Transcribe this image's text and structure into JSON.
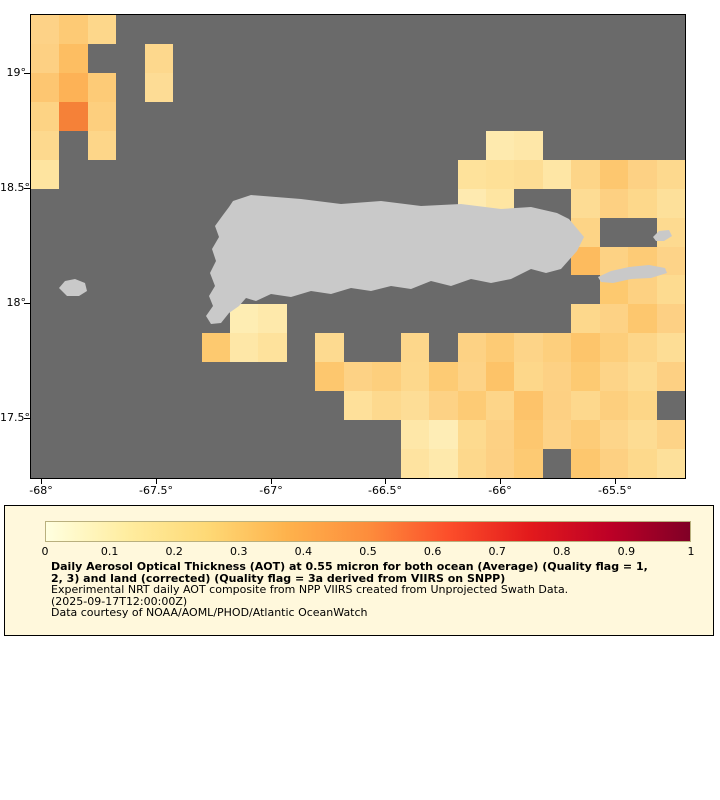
{
  "figure": {
    "map": {
      "background": "#6a6a6a",
      "land_color": "#c9c9c9",
      "lat_ticks": [
        "19°",
        "18.5°",
        "18°",
        "17.5°"
      ],
      "lon_ticks": [
        "-68°",
        "-67.5°",
        "-67°",
        "-66.5°",
        "-66°",
        "-65.5°"
      ],
      "grid": {
        "rows": 16,
        "cols": 23,
        "cells": [
          [
            0,
            0,
            "#fdd287"
          ],
          [
            0,
            1,
            "#fdca75"
          ],
          [
            0,
            2,
            "#fdd78b"
          ],
          [
            1,
            0,
            "#fdd083"
          ],
          [
            1,
            1,
            "#fdbe62"
          ],
          [
            1,
            4,
            "#fdd88d"
          ],
          [
            2,
            0,
            "#fdc671"
          ],
          [
            2,
            1,
            "#fdb256"
          ],
          [
            2,
            2,
            "#fdcb77"
          ],
          [
            2,
            4,
            "#fddc95"
          ],
          [
            3,
            0,
            "#fdd384"
          ],
          [
            3,
            1,
            "#f58138"
          ],
          [
            3,
            2,
            "#fdcf7e"
          ],
          [
            4,
            0,
            "#fdd98e"
          ],
          [
            4,
            2,
            "#fdd689"
          ],
          [
            4,
            16,
            "#feeaae"
          ],
          [
            4,
            17,
            "#fee7a8"
          ],
          [
            5,
            0,
            "#fee4a0"
          ],
          [
            5,
            15,
            "#fee29b"
          ],
          [
            5,
            16,
            "#fee097"
          ],
          [
            5,
            17,
            "#fddd94"
          ],
          [
            5,
            18,
            "#fee6a5"
          ],
          [
            5,
            19,
            "#fdd588"
          ],
          [
            5,
            20,
            "#fdc76f"
          ],
          [
            5,
            21,
            "#fdd184"
          ],
          [
            5,
            22,
            "#fdd98e"
          ],
          [
            6,
            15,
            "#feeab0"
          ],
          [
            6,
            16,
            "#fee5a2"
          ],
          [
            6,
            19,
            "#fddc94"
          ],
          [
            6,
            20,
            "#fdd082"
          ],
          [
            6,
            21,
            "#fdd88b"
          ],
          [
            6,
            22,
            "#fde09a"
          ],
          [
            7,
            19,
            "#fdd486"
          ],
          [
            7,
            22,
            "#fdda90"
          ],
          [
            8,
            19,
            "#fdbb5e"
          ],
          [
            8,
            20,
            "#fdd284"
          ],
          [
            8,
            21,
            "#fdcb76"
          ],
          [
            8,
            22,
            "#fdd388"
          ],
          [
            9,
            20,
            "#fdc96f"
          ],
          [
            9,
            21,
            "#fdd182"
          ],
          [
            9,
            22,
            "#fddb90"
          ],
          [
            10,
            7,
            "#feedb3"
          ],
          [
            10,
            8,
            "#fee9ab"
          ],
          [
            10,
            19,
            "#fdd88c"
          ],
          [
            10,
            20,
            "#fdd285"
          ],
          [
            10,
            21,
            "#fdc76e"
          ],
          [
            10,
            22,
            "#fdd084"
          ],
          [
            11,
            6,
            "#fdc96f"
          ],
          [
            11,
            7,
            "#fee7a7"
          ],
          [
            11,
            8,
            "#fee29c"
          ],
          [
            11,
            10,
            "#fdda90"
          ],
          [
            11,
            13,
            "#fdd78b"
          ],
          [
            11,
            15,
            "#fdd284"
          ],
          [
            11,
            16,
            "#fdcb75"
          ],
          [
            11,
            17,
            "#fdd488"
          ],
          [
            11,
            18,
            "#fdcf7d"
          ],
          [
            11,
            19,
            "#fdc56b"
          ],
          [
            11,
            20,
            "#fdce7b"
          ],
          [
            11,
            21,
            "#fdd689"
          ],
          [
            11,
            22,
            "#fddd95"
          ],
          [
            12,
            10,
            "#fdc76e"
          ],
          [
            12,
            11,
            "#fdd285"
          ],
          [
            12,
            12,
            "#fdcf7d"
          ],
          [
            12,
            13,
            "#fdd88c"
          ],
          [
            12,
            14,
            "#fdcb74"
          ],
          [
            12,
            15,
            "#fdd387"
          ],
          [
            12,
            16,
            "#fdc368"
          ],
          [
            12,
            17,
            "#fdd78a"
          ],
          [
            12,
            18,
            "#fdd184"
          ],
          [
            12,
            19,
            "#fdca72"
          ],
          [
            12,
            20,
            "#fdd488"
          ],
          [
            12,
            21,
            "#fddb91"
          ],
          [
            12,
            22,
            "#fdd083"
          ],
          [
            13,
            11,
            "#fee09a"
          ],
          [
            13,
            12,
            "#fdd98e"
          ],
          [
            13,
            13,
            "#fddd96"
          ],
          [
            13,
            14,
            "#fdd285"
          ],
          [
            13,
            15,
            "#fdcb75"
          ],
          [
            13,
            16,
            "#fdd589"
          ],
          [
            13,
            17,
            "#fdc36a"
          ],
          [
            13,
            18,
            "#fdd083"
          ],
          [
            13,
            19,
            "#fdd88d"
          ],
          [
            13,
            20,
            "#fdcf7e"
          ],
          [
            13,
            21,
            "#fdd687"
          ],
          [
            14,
            13,
            "#fee7a8"
          ],
          [
            14,
            14,
            "#feedb6"
          ],
          [
            14,
            15,
            "#fdda8f"
          ],
          [
            14,
            16,
            "#fdd184"
          ],
          [
            14,
            17,
            "#fdc76f"
          ],
          [
            14,
            18,
            "#fdd286"
          ],
          [
            14,
            19,
            "#fdcc78"
          ],
          [
            14,
            20,
            "#fdd58a"
          ],
          [
            14,
            21,
            "#fddc93"
          ],
          [
            14,
            22,
            "#fdd387"
          ],
          [
            15,
            13,
            "#fee3a0"
          ],
          [
            15,
            14,
            "#fee9ac"
          ],
          [
            15,
            15,
            "#fdd88c"
          ],
          [
            15,
            16,
            "#fdd083"
          ],
          [
            15,
            17,
            "#fdca73"
          ],
          [
            15,
            19,
            "#fdc76e"
          ],
          [
            15,
            20,
            "#fdd082"
          ],
          [
            15,
            21,
            "#fdd98c"
          ],
          [
            15,
            22,
            "#fde09a"
          ]
        ]
      }
    },
    "legend": {
      "background": "#fff8dc",
      "colorbar_stops": [
        "#ffffe0",
        "#ffeda0",
        "#fed976",
        "#feb24c",
        "#fd8d3c",
        "#fc4e2a",
        "#e31a1c",
        "#bd0026",
        "#800026"
      ],
      "colorbar_ticks": [
        "0",
        "0.1",
        "0.2",
        "0.3",
        "0.4",
        "0.5",
        "0.6",
        "0.7",
        "0.8",
        "0.9",
        "1"
      ],
      "title_bold_line1": "Daily Aerosol Optical Thickness (AOT) at 0.55 micron for both ocean (Average) (Quality flag = 1,",
      "title_bold_line2": "2, 3) and land (corrected) (Quality flag = 3a derived from VIIRS on SNPP)",
      "subtitle": "Experimental NRT daily AOT composite from NPP VIIRS created from Unprojected Swath Data.",
      "timestamp": "(2025-09-17T12:00:00Z)",
      "credit": "Data courtesy of NOAA/AOML/PHOD/Atlantic OceanWatch"
    }
  }
}
